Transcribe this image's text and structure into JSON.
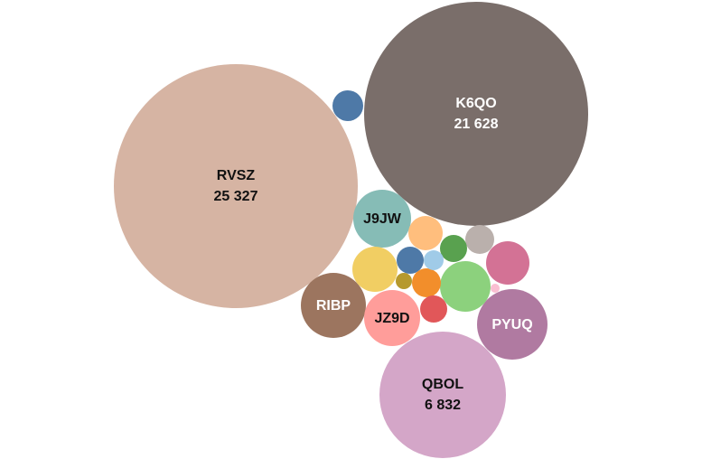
{
  "chart_data": {
    "type": "bubble",
    "title": "",
    "bubbles": [
      {
        "label": "RVSZ",
        "value": 25327,
        "value_text": "25 327",
        "color": "#d6b4a3",
        "text_color": "#111111"
      },
      {
        "label": "K6QO",
        "value": 21628,
        "value_text": "21 628",
        "color": "#7a6e6a",
        "text_color": "#ffffff"
      },
      {
        "label": "QBOL",
        "value": 6832,
        "value_text": "6 832",
        "color": "#d4a6c8",
        "text_color": "#111111"
      },
      {
        "label": "PYUQ",
        "value": null,
        "value_text": "",
        "color": "#b07aa1",
        "text_color": "#ffffff"
      },
      {
        "label": "RIBP",
        "value": null,
        "value_text": "",
        "color": "#9c755f",
        "text_color": "#ffffff"
      },
      {
        "label": "J9JW",
        "value": null,
        "value_text": "",
        "color": "#86bcb6",
        "text_color": "#111111"
      },
      {
        "label": "JZ9D",
        "value": null,
        "value_text": "",
        "color": "#ff9d9a",
        "text_color": "#111111"
      },
      {
        "label": "",
        "value": null,
        "value_text": "",
        "color": "#d37295",
        "text_color": "#111111"
      },
      {
        "label": "",
        "value": null,
        "value_text": "",
        "color": "#8cd17d",
        "text_color": "#111111"
      },
      {
        "label": "",
        "value": null,
        "value_text": "",
        "color": "#f1ce63",
        "text_color": "#111111"
      },
      {
        "label": "",
        "value": null,
        "value_text": "",
        "color": "#4e79a7",
        "text_color": "#111111"
      },
      {
        "label": "",
        "value": null,
        "value_text": "",
        "color": "#ffbe7d",
        "text_color": "#111111"
      },
      {
        "label": "",
        "value": null,
        "value_text": "",
        "color": "#bab0ac",
        "text_color": "#111111"
      },
      {
        "label": "",
        "value": null,
        "value_text": "",
        "color": "#59a14f",
        "text_color": "#111111"
      },
      {
        "label": "",
        "value": null,
        "value_text": "",
        "color": "#4e79a7",
        "text_color": "#111111"
      },
      {
        "label": "",
        "value": null,
        "value_text": "",
        "color": "#f28e2b",
        "text_color": "#111111"
      },
      {
        "label": "",
        "value": null,
        "value_text": "",
        "color": "#e15759",
        "text_color": "#111111"
      },
      {
        "label": "",
        "value": null,
        "value_text": "",
        "color": "#a0cbe8",
        "text_color": "#111111"
      },
      {
        "label": "",
        "value": null,
        "value_text": "",
        "color": "#b6992d",
        "text_color": "#111111"
      },
      {
        "label": "",
        "value": null,
        "value_text": "",
        "color": "#fabfd2",
        "text_color": "#111111"
      }
    ]
  }
}
